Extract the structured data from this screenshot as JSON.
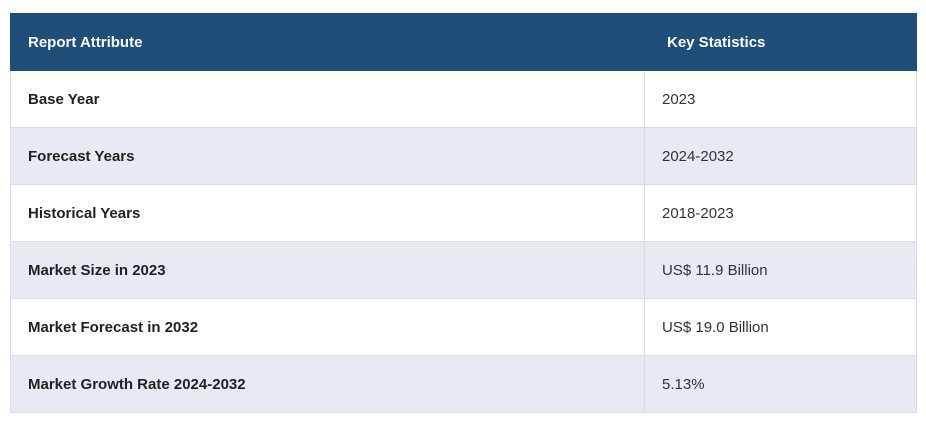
{
  "table": {
    "header": [
      "Report Attribute",
      "Key Statistics"
    ],
    "rows": [
      [
        "Base Year",
        "2023"
      ],
      [
        "Forecast Years",
        "2024-2032"
      ],
      [
        "Historical Years",
        "2018-2023"
      ],
      [
        "Market Size in 2023",
        "US$ 11.9 Billion"
      ],
      [
        "Market Forecast in 2032",
        "US$ 19.0 Billion"
      ],
      [
        "Market Growth Rate 2024-2032",
        "5.13%"
      ]
    ]
  }
}
